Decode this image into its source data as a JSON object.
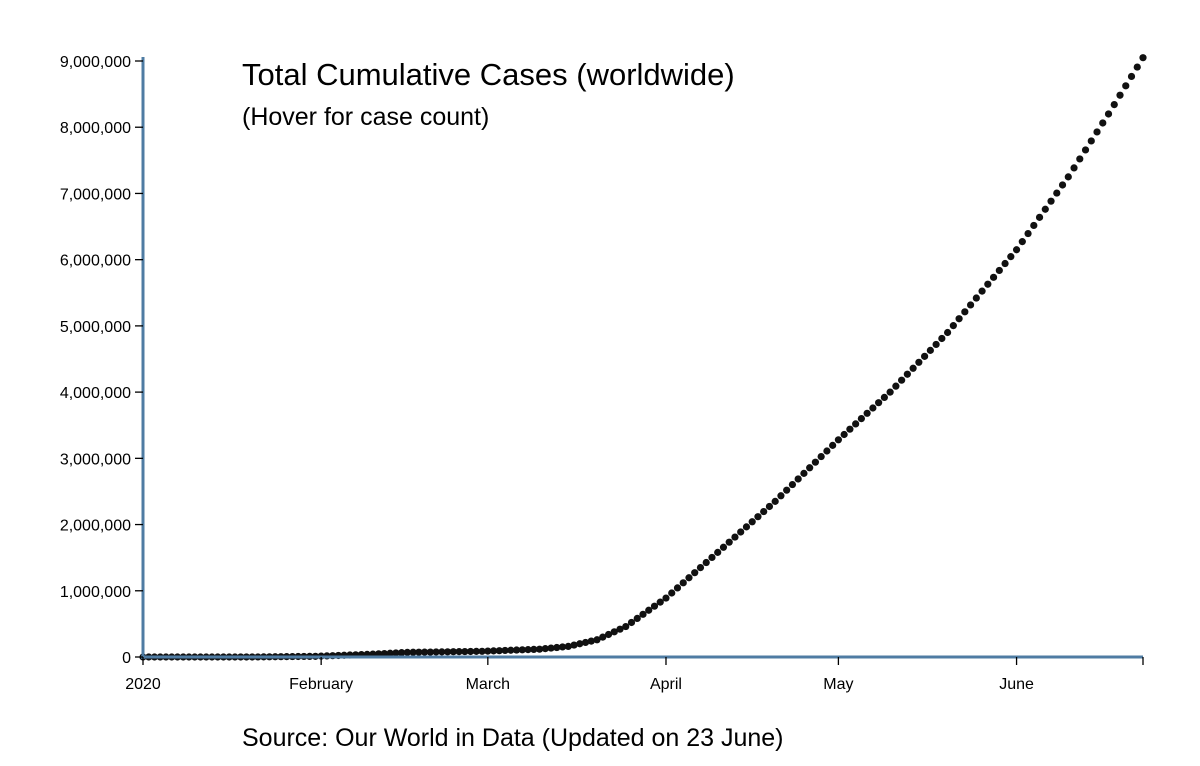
{
  "chart_data": {
    "type": "scatter",
    "title": "Total Cumulative Cases (worldwide)",
    "subtitle": "(Hover for case count)",
    "source": "Source: Our World in Data (Updated on 23 June)",
    "xlabel": "",
    "ylabel": "",
    "x_range": [
      "2020-01-01",
      "2020-06-23"
    ],
    "ylim": [
      0,
      9000000
    ],
    "y_ticks": [
      {
        "value": 0,
        "label": "0"
      },
      {
        "value": 1000000,
        "label": "1,000,000"
      },
      {
        "value": 2000000,
        "label": "2,000,000"
      },
      {
        "value": 3000000,
        "label": "3,000,000"
      },
      {
        "value": 4000000,
        "label": "4,000,000"
      },
      {
        "value": 5000000,
        "label": "5,000,000"
      },
      {
        "value": 6000000,
        "label": "6,000,000"
      },
      {
        "value": 7000000,
        "label": "7,000,000"
      },
      {
        "value": 8000000,
        "label": "8,000,000"
      },
      {
        "value": 9000000,
        "label": "9,000,000"
      }
    ],
    "x_ticks": [
      {
        "date": "2020-01-01",
        "label": "2020"
      },
      {
        "date": "2020-02-01",
        "label": "February"
      },
      {
        "date": "2020-03-01",
        "label": "March"
      },
      {
        "date": "2020-04-01",
        "label": "April"
      },
      {
        "date": "2020-05-01",
        "label": "May"
      },
      {
        "date": "2020-06-01",
        "label": "June"
      }
    ],
    "grid": false,
    "marker_color": "#111111",
    "axis_color": "#4f7ca3",
    "anchors": [
      {
        "date": "2020-01-01",
        "y": 0
      },
      {
        "date": "2020-01-20",
        "y": 300
      },
      {
        "date": "2020-01-31",
        "y": 10000
      },
      {
        "date": "2020-02-10",
        "y": 43000
      },
      {
        "date": "2020-02-16",
        "y": 70000
      },
      {
        "date": "2020-02-29",
        "y": 86000
      },
      {
        "date": "2020-03-10",
        "y": 118000
      },
      {
        "date": "2020-03-15",
        "y": 160000
      },
      {
        "date": "2020-03-20",
        "y": 260000
      },
      {
        "date": "2020-03-25",
        "y": 460000
      },
      {
        "date": "2020-04-01",
        "y": 890000
      },
      {
        "date": "2020-04-10",
        "y": 1580000
      },
      {
        "date": "2020-04-20",
        "y": 2350000
      },
      {
        "date": "2020-05-01",
        "y": 3280000
      },
      {
        "date": "2020-05-10",
        "y": 4000000
      },
      {
        "date": "2020-05-20",
        "y": 4900000
      },
      {
        "date": "2020-06-01",
        "y": 6150000
      },
      {
        "date": "2020-06-10",
        "y": 7250000
      },
      {
        "date": "2020-06-17",
        "y": 8200000
      },
      {
        "date": "2020-06-23",
        "y": 9050000
      }
    ]
  }
}
